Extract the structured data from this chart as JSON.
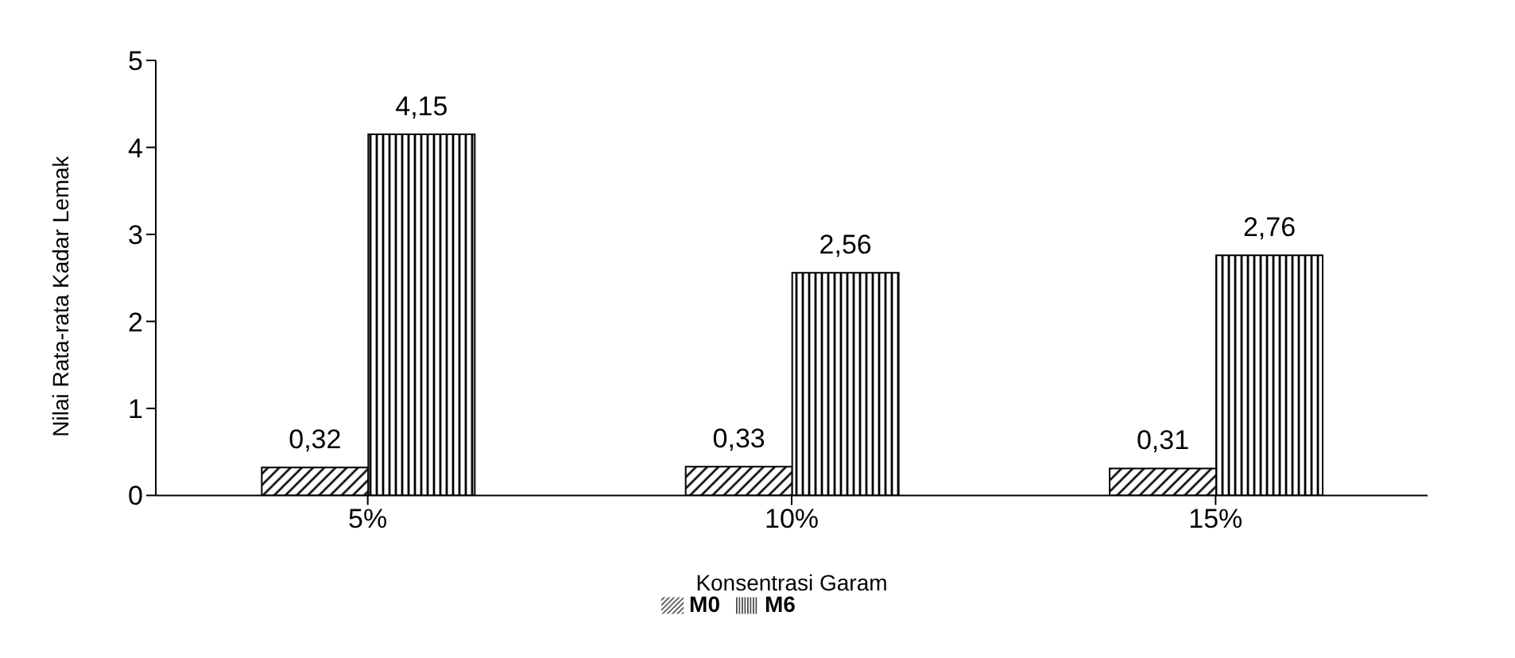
{
  "chart_data": {
    "type": "bar",
    "xlabel": "Konsentrasi Garam",
    "ylabel": "Nilai Rata-rata Kadar Lemak",
    "categories": [
      "5%",
      "10%",
      "15%"
    ],
    "series": [
      {
        "name": "M0",
        "color": "#000000",
        "values": [
          0.32,
          0.33,
          0.31
        ],
        "value_labels": [
          "0,32",
          "0,33",
          "0,31"
        ]
      },
      {
        "name": "M6",
        "color": "#000000",
        "values": [
          4.15,
          2.56,
          2.76
        ],
        "value_labels": [
          "4,15",
          "2,56",
          "2,76"
        ]
      }
    ],
    "ylim": [
      0,
      5
    ],
    "yticks": [
      0,
      1,
      2,
      3,
      4,
      5
    ],
    "grid": false,
    "legend": "bottom"
  }
}
